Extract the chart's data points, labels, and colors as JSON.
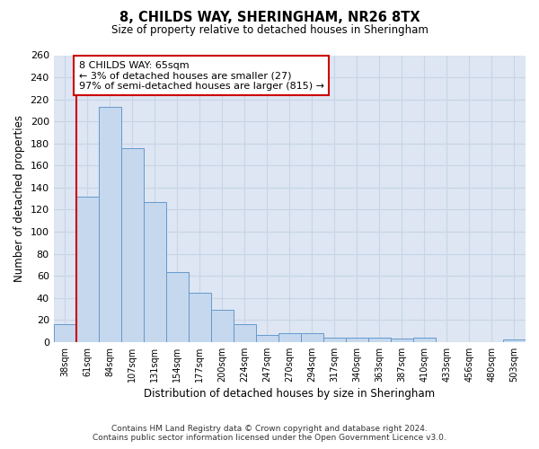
{
  "title": "8, CHILDS WAY, SHERINGHAM, NR26 8TX",
  "subtitle": "Size of property relative to detached houses in Sheringham",
  "xlabel": "Distribution of detached houses by size in Sheringham",
  "ylabel": "Number of detached properties",
  "bar_labels": [
    "38sqm",
    "61sqm",
    "84sqm",
    "107sqm",
    "131sqm",
    "154sqm",
    "177sqm",
    "200sqm",
    "224sqm",
    "247sqm",
    "270sqm",
    "294sqm",
    "317sqm",
    "340sqm",
    "363sqm",
    "387sqm",
    "410sqm",
    "433sqm",
    "456sqm",
    "480sqm",
    "503sqm"
  ],
  "bar_values": [
    16,
    132,
    213,
    176,
    127,
    63,
    45,
    29,
    16,
    6,
    8,
    8,
    4,
    4,
    4,
    3,
    4,
    0,
    0,
    0,
    2
  ],
  "bar_color": "#c5d8ee",
  "bar_edge_color": "#6699cc",
  "vline_color": "#cc0000",
  "vline_pos": 0.525,
  "annotation_text": "8 CHILDS WAY: 65sqm\n← 3% of detached houses are smaller (27)\n97% of semi-detached houses are larger (815) →",
  "annotation_box_color": "#ffffff",
  "annotation_box_edge": "#cc0000",
  "ylim": [
    0,
    260
  ],
  "yticks": [
    0,
    20,
    40,
    60,
    80,
    100,
    120,
    140,
    160,
    180,
    200,
    220,
    240,
    260
  ],
  "grid_color": "#c8d4e8",
  "bg_color": "#dde6f2",
  "footer_line1": "Contains HM Land Registry data © Crown copyright and database right 2024.",
  "footer_line2": "Contains public sector information licensed under the Open Government Licence v3.0."
}
